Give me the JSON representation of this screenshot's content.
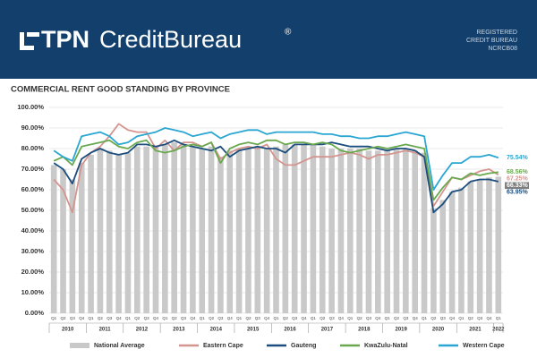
{
  "header": {
    "logo_bold": "TPN",
    "logo_light": "CreditBureau",
    "logo_mark": "®",
    "registration": [
      "REGISTERED",
      "CREDIT BUREAU",
      "NCRCB08"
    ]
  },
  "chart_data": {
    "type": "combo",
    "title": "COMMERCIAL RENT GOOD STANDING BY PROVINCE",
    "categories": [
      "Q1",
      "Q2",
      "Q3",
      "Q4",
      "Q1",
      "Q2",
      "Q3",
      "Q4",
      "Q1",
      "Q2",
      "Q3",
      "Q4",
      "Q1",
      "Q2",
      "Q3",
      "Q4",
      "Q1",
      "Q2",
      "Q3",
      "Q4",
      "Q1",
      "Q2",
      "Q3",
      "Q4",
      "Q1",
      "Q2",
      "Q3",
      "Q4",
      "Q1",
      "Q2",
      "Q3",
      "Q4",
      "Q1",
      "Q2",
      "Q3",
      "Q4",
      "Q1",
      "Q2",
      "Q3",
      "Q4",
      "Q1",
      "Q2",
      "Q3",
      "Q4",
      "Q1",
      "Q2",
      "Q3",
      "Q4",
      "Q1"
    ],
    "years": [
      "2010",
      "2011",
      "2012",
      "2013",
      "2014",
      "2015",
      "2016",
      "2017",
      "2018",
      "2019",
      "2020",
      "2021",
      "2022"
    ],
    "ylim": [
      0,
      100
    ],
    "yticks": [
      {
        "value": 0,
        "label": "0.00%"
      },
      {
        "value": 10,
        "label": "10.00%"
      },
      {
        "value": 20,
        "label": "20.00%"
      },
      {
        "value": 30,
        "label": "30.00%"
      },
      {
        "value": 40,
        "label": "40.00%"
      },
      {
        "value": 50,
        "label": "50.00%"
      },
      {
        "value": 60,
        "label": "60.00%"
      },
      {
        "value": 70,
        "label": "70.00%"
      },
      {
        "value": 80,
        "label": "80.00%"
      },
      {
        "value": 90,
        "label": "90.00%"
      },
      {
        "value": 100,
        "label": "100.00%"
      }
    ],
    "grid": true,
    "series": [
      {
        "name": "National Average",
        "type": "bar",
        "color": "#c9c9c9",
        "values": [
          72,
          70,
          65,
          73,
          77,
          80,
          79,
          77,
          78,
          81,
          81,
          81,
          82,
          83,
          82,
          81,
          80,
          81,
          76,
          79,
          80,
          81,
          81,
          80,
          81,
          82,
          82,
          82,
          82,
          81,
          80,
          80,
          80,
          80,
          79,
          79,
          79,
          80,
          80,
          79,
          78,
          51,
          55,
          59,
          61,
          64,
          65,
          66,
          66.33
        ],
        "value_labels": [
          null,
          null,
          null,
          null,
          null,
          null,
          null,
          null,
          null,
          null,
          null,
          null,
          null,
          null,
          null,
          null,
          null,
          null,
          null,
          null,
          null,
          null,
          null,
          null,
          null,
          null,
          null,
          null,
          null,
          null,
          null,
          null,
          null,
          null,
          null,
          null,
          null,
          null,
          null,
          null,
          null,
          null,
          null,
          null,
          null,
          null,
          null,
          null,
          "66.33%"
        ]
      },
      {
        "name": "Eastern Cape",
        "type": "line",
        "color": "#d4958f",
        "values": [
          65,
          60,
          49,
          72,
          78,
          81,
          86,
          92,
          89,
          88,
          88,
          80,
          84,
          79,
          83,
          83,
          81,
          83,
          75,
          78,
          80,
          81,
          80,
          82,
          75,
          72,
          72,
          74,
          76,
          76,
          76,
          77,
          78,
          77,
          75,
          77,
          77,
          78,
          79,
          78,
          76,
          52,
          59,
          66,
          65,
          67,
          69,
          70,
          67.25
        ],
        "value_labels": [
          null,
          null,
          null,
          null,
          null,
          null,
          null,
          null,
          null,
          null,
          null,
          null,
          null,
          null,
          null,
          null,
          null,
          null,
          null,
          null,
          null,
          null,
          null,
          null,
          null,
          null,
          null,
          null,
          null,
          null,
          null,
          null,
          null,
          null,
          null,
          null,
          null,
          null,
          null,
          null,
          null,
          null,
          null,
          null,
          null,
          null,
          null,
          null,
          "67.25%"
        ]
      },
      {
        "name": "Gauteng",
        "type": "line",
        "color": "#1b4d7e",
        "values": [
          73,
          70,
          63,
          75,
          78,
          80,
          78,
          77,
          78,
          82,
          82,
          81,
          82,
          84,
          82,
          81,
          80,
          79,
          81,
          76,
          79,
          80,
          81,
          80,
          80,
          78,
          82,
          82,
          82,
          82,
          83,
          82,
          81,
          81,
          81,
          80,
          79,
          80,
          80,
          79,
          76,
          49,
          53,
          59,
          60,
          64,
          65,
          65,
          63.95
        ],
        "value_labels": [
          null,
          null,
          null,
          null,
          null,
          null,
          null,
          null,
          null,
          null,
          null,
          null,
          null,
          null,
          null,
          null,
          null,
          null,
          null,
          null,
          null,
          null,
          null,
          null,
          null,
          null,
          null,
          null,
          null,
          null,
          null,
          null,
          null,
          null,
          null,
          null,
          null,
          null,
          null,
          null,
          null,
          null,
          null,
          null,
          null,
          null,
          null,
          null,
          "63.95%"
        ]
      },
      {
        "name": "KwaZulu-Natal",
        "type": "line",
        "color": "#6aa84f",
        "values": [
          74,
          76,
          72,
          81,
          82,
          83,
          84,
          81,
          80,
          83,
          84,
          79,
          78,
          79,
          81,
          82,
          81,
          83,
          73,
          80,
          82,
          83,
          82,
          84,
          84,
          82,
          83,
          83,
          82,
          83,
          82,
          79,
          78,
          79,
          80,
          81,
          80,
          81,
          82,
          81,
          80,
          55,
          61,
          66,
          65,
          68,
          67,
          68,
          68.56
        ],
        "value_labels": [
          null,
          null,
          null,
          null,
          null,
          null,
          null,
          null,
          null,
          null,
          null,
          null,
          null,
          null,
          null,
          null,
          null,
          null,
          null,
          null,
          null,
          null,
          null,
          null,
          null,
          null,
          null,
          null,
          null,
          null,
          null,
          null,
          null,
          null,
          null,
          null,
          null,
          null,
          null,
          null,
          null,
          null,
          null,
          null,
          null,
          null,
          null,
          null,
          "68.56%"
        ]
      },
      {
        "name": "Western Cape",
        "type": "line",
        "color": "#2aa6d2",
        "values": [
          79,
          76,
          74,
          86,
          87,
          88,
          86,
          82,
          83,
          86,
          87,
          88,
          90,
          89,
          88,
          86,
          87,
          88,
          85,
          87,
          88,
          89,
          89,
          87,
          88,
          88,
          88,
          88,
          88,
          87,
          87,
          86,
          86,
          85,
          85,
          86,
          86,
          87,
          88,
          87,
          86,
          60,
          67,
          73,
          73,
          76,
          76,
          77,
          75.54
        ],
        "value_labels": [
          null,
          null,
          null,
          null,
          null,
          null,
          null,
          null,
          null,
          null,
          null,
          null,
          null,
          null,
          null,
          null,
          null,
          null,
          null,
          null,
          null,
          null,
          null,
          null,
          null,
          null,
          null,
          null,
          null,
          null,
          null,
          null,
          null,
          null,
          null,
          null,
          null,
          null,
          null,
          null,
          null,
          null,
          null,
          null,
          null,
          null,
          null,
          null,
          "75.54%"
        ]
      }
    ]
  }
}
